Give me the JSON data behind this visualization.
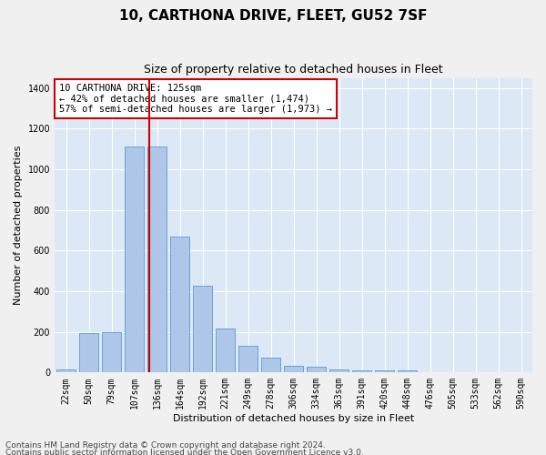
{
  "title": "10, CARTHONA DRIVE, FLEET, GU52 7SF",
  "subtitle": "Size of property relative to detached houses in Fleet",
  "xlabel": "Distribution of detached houses by size in Fleet",
  "ylabel": "Number of detached properties",
  "categories": [
    "22sqm",
    "50sqm",
    "79sqm",
    "107sqm",
    "136sqm",
    "164sqm",
    "192sqm",
    "221sqm",
    "249sqm",
    "278sqm",
    "306sqm",
    "334sqm",
    "363sqm",
    "391sqm",
    "420sqm",
    "448sqm",
    "476sqm",
    "505sqm",
    "533sqm",
    "562sqm",
    "590sqm"
  ],
  "values": [
    15,
    195,
    200,
    1110,
    1110,
    670,
    425,
    215,
    130,
    75,
    35,
    30,
    15,
    12,
    10,
    10,
    0,
    0,
    0,
    0,
    0
  ],
  "bar_color": "#aec6e8",
  "bar_edge_color": "#5b9bd5",
  "background_color": "#dce8f5",
  "grid_color": "#ffffff",
  "red_line_x": 3.67,
  "annotation_text": "10 CARTHONA DRIVE: 125sqm\n← 42% of detached houses are smaller (1,474)\n57% of semi-detached houses are larger (1,973) →",
  "annotation_box_color": "#ffffff",
  "annotation_box_edge_color": "#cc0000",
  "footer_line1": "Contains HM Land Registry data © Crown copyright and database right 2024.",
  "footer_line2": "Contains public sector information licensed under the Open Government Licence v3.0.",
  "ylim": [
    0,
    1450
  ],
  "yticks": [
    0,
    200,
    400,
    600,
    800,
    1000,
    1200,
    1400
  ],
  "title_fontsize": 11,
  "subtitle_fontsize": 9,
  "label_fontsize": 8,
  "tick_fontsize": 7,
  "footer_fontsize": 6.5,
  "annotation_fontsize": 7.5
}
